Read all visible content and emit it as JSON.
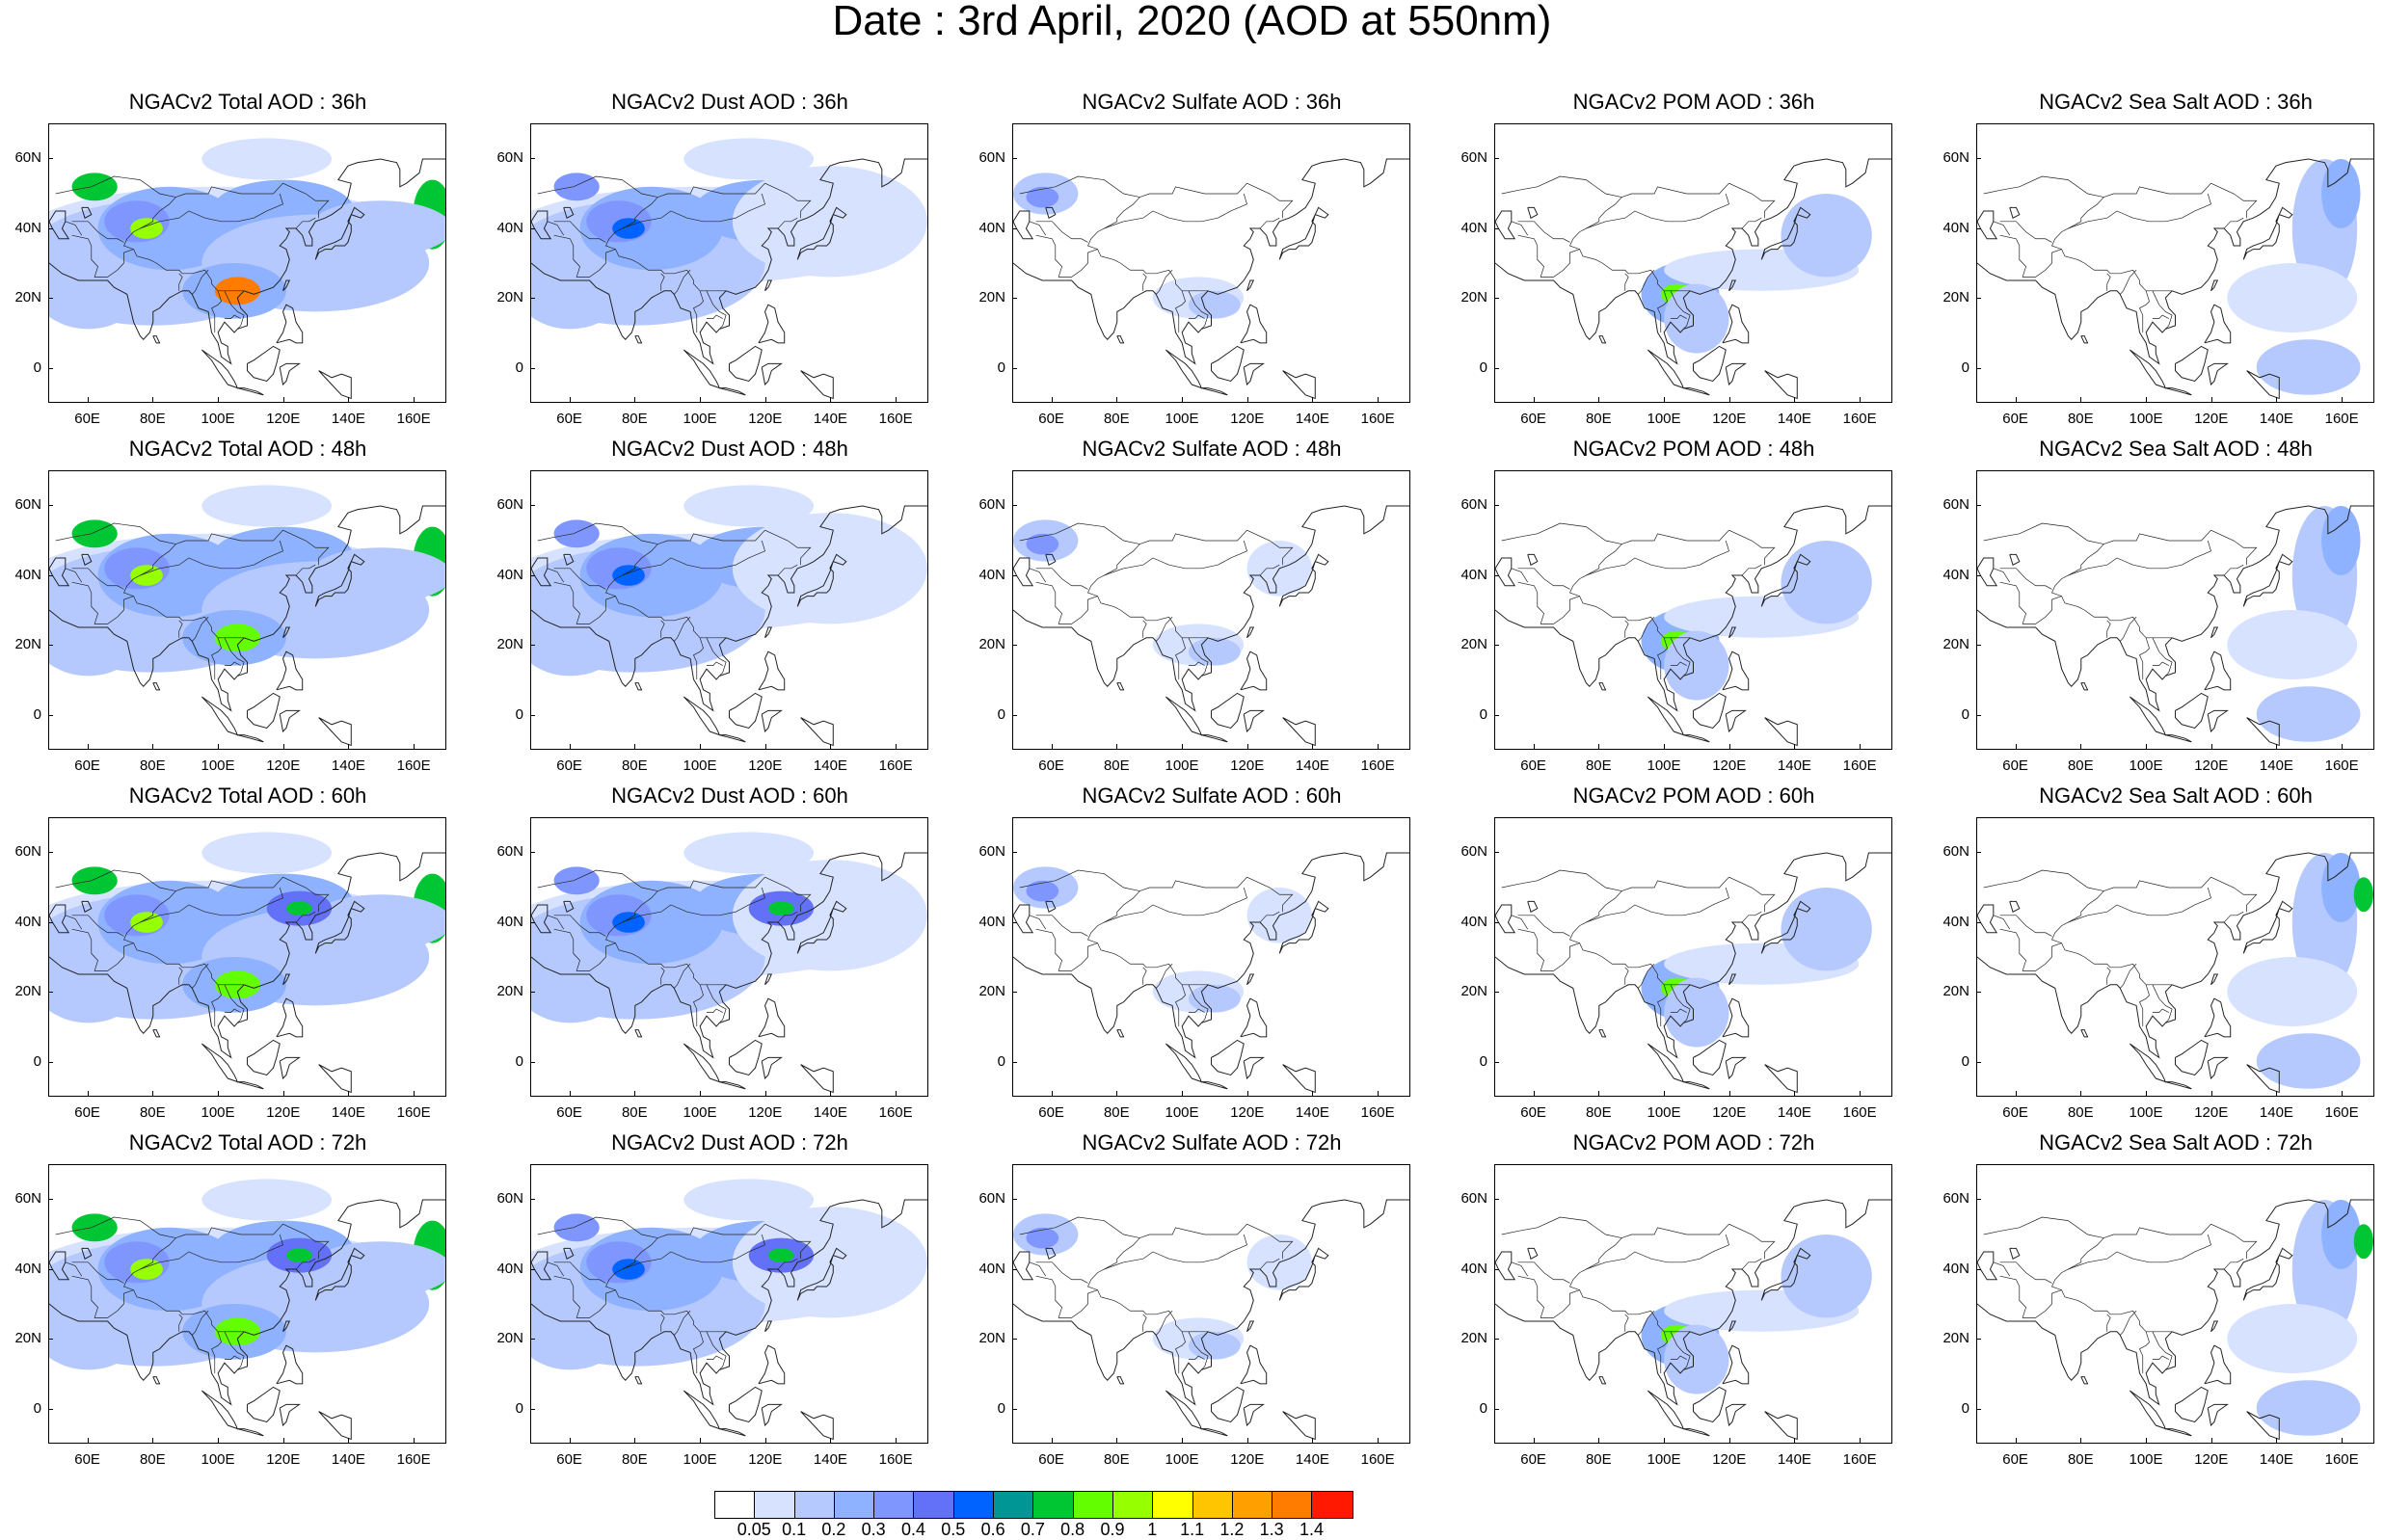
{
  "title": "Date : 3rd April, 2020 (AOD at 550nm)",
  "panel_titles": [
    [
      "NGACv2 Total AOD : 36h",
      "NGACv2 Dust AOD : 36h",
      "NGACv2 Sulfate AOD : 36h",
      "NGACv2 POM AOD : 36h",
      "NGACv2 Sea Salt AOD : 36h"
    ],
    [
      "NGACv2 Total AOD : 48h",
      "NGACv2 Dust AOD : 48h",
      "NGACv2 Sulfate AOD : 48h",
      "NGACv2 POM AOD : 48h",
      "NGACv2 Sea Salt AOD : 48h"
    ],
    [
      "NGACv2 Total AOD : 60h",
      "NGACv2 Dust AOD : 60h",
      "NGACv2 Sulfate AOD : 60h",
      "NGACv2 POM AOD : 60h",
      "NGACv2 Sea Salt AOD : 60h"
    ],
    [
      "NGACv2 Total AOD : 72h",
      "NGACv2 Dust AOD : 72h",
      "NGACv2 Sulfate AOD : 72h",
      "NGACv2 POM AOD : 72h",
      "NGACv2 Sea Salt  AOD : 72h"
    ]
  ],
  "lat_ticks": [
    "60N",
    "40N",
    "20N",
    "0"
  ],
  "lon_ticks": [
    "60E",
    "80E",
    "100E",
    "120E",
    "140E",
    "160E"
  ],
  "colorbar": {
    "labels": [
      "0.05",
      "0.1",
      "0.2",
      "0.3",
      "0.4",
      "0.5",
      "0.6",
      "0.7",
      "0.8",
      "0.9",
      "1",
      "1.1",
      "1.2",
      "1.3",
      "1.4"
    ],
    "colors": [
      "#ffffff",
      "#d6e2ff",
      "#b5c9ff",
      "#8eb2ff",
      "#7f96ff",
      "#6370f8",
      "#0063ff",
      "#009696",
      "#00c633",
      "#63ff00",
      "#96ff00",
      "#ffff00",
      "#ffc600",
      "#ffa000",
      "#ff7c00",
      "#ff1900"
    ]
  }
}
